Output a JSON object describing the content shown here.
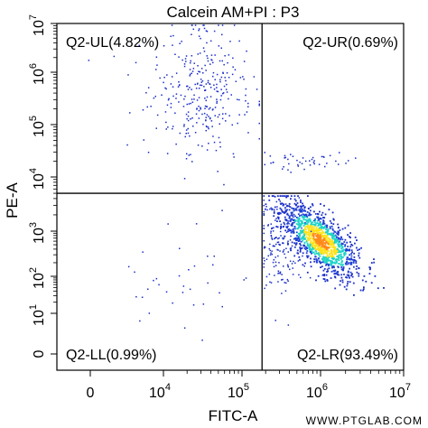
{
  "chart_data": {
    "type": "scatter",
    "title": "Calcein AM+PI : P3",
    "xlabel": "FITC-A",
    "ylabel": "PE-A",
    "x_scale": "biexponential",
    "y_scale": "biexponential",
    "xlim": [
      -1000,
      10000000
    ],
    "ylim": [
      -10,
      10000000
    ],
    "x_ticks": [
      {
        "base": "0",
        "exp": ""
      },
      {
        "base": "10",
        "exp": "4"
      },
      {
        "base": "10",
        "exp": "5"
      },
      {
        "base": "10",
        "exp": "6"
      },
      {
        "base": "10",
        "exp": "7"
      }
    ],
    "y_ticks": [
      {
        "base": "0",
        "exp": ""
      },
      {
        "base": "10",
        "exp": "1"
      },
      {
        "base": "10",
        "exp": "2"
      },
      {
        "base": "10",
        "exp": "3"
      },
      {
        "base": "10",
        "exp": "4"
      },
      {
        "base": "10",
        "exp": "5"
      },
      {
        "base": "10",
        "exp": "6"
      },
      {
        "base": "10",
        "exp": "7"
      }
    ],
    "quadrant_gate": {
      "x": 180000,
      "y": 5000
    },
    "quadrants": [
      {
        "label": "Q2-UL(4.82%)",
        "position": "top-left"
      },
      {
        "label": "Q2-UR(0.69%)",
        "position": "top-right"
      },
      {
        "label": "Q2-LL(0.99%)",
        "position": "bottom-left"
      },
      {
        "label": "Q2-LR(93.49%)",
        "position": "bottom-right"
      }
    ],
    "populations": [
      {
        "quadrant": "Q2-LR",
        "share": 0.9349,
        "center": {
          "x": 1000000,
          "y": 600
        },
        "colormap": "density"
      },
      {
        "quadrant": "Q2-UL",
        "share": 0.0482,
        "center": {
          "x": 30000,
          "y": 300000
        }
      },
      {
        "quadrant": "Q2-UR",
        "share": 0.0069,
        "center": {
          "x": 1000000,
          "y": 20000
        }
      },
      {
        "quadrant": "Q2-LL",
        "share": 0.0099,
        "center": {
          "x": 20000,
          "y": 200
        }
      }
    ],
    "grid": false,
    "legend": "none"
  },
  "watermark": "WWW.PTGLAB.COM",
  "colors": {
    "sparse": "#1a2dc8",
    "density_low": "#1f3fd4",
    "density_mid": "#1fd4c8",
    "density_high": "#ffe21a",
    "density_peak": "#ff8a1a"
  }
}
